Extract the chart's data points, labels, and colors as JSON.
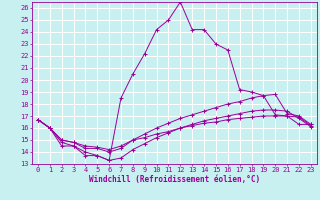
{
  "bg_color": "#c8f0f0",
  "grid_color": "#aadddd",
  "line_color": "#990099",
  "xlim": [
    -0.5,
    23.5
  ],
  "ylim": [
    13,
    26.5
  ],
  "xticks": [
    0,
    1,
    2,
    3,
    4,
    5,
    6,
    7,
    8,
    9,
    10,
    11,
    12,
    13,
    14,
    15,
    16,
    17,
    18,
    19,
    20,
    21,
    22,
    23
  ],
  "yticks": [
    13,
    14,
    15,
    16,
    17,
    18,
    19,
    20,
    21,
    22,
    23,
    24,
    25,
    26
  ],
  "line1_x": [
    0,
    1,
    2,
    3,
    4,
    5,
    6,
    7,
    8,
    9,
    10,
    11,
    12,
    13,
    14,
    15,
    16,
    17,
    18,
    19,
    20,
    21,
    22,
    23
  ],
  "line1_y": [
    16.7,
    16.0,
    14.5,
    14.5,
    13.7,
    13.7,
    13.3,
    18.5,
    20.5,
    22.2,
    24.2,
    25.0,
    26.5,
    24.2,
    24.2,
    23.0,
    22.5,
    19.2,
    19.0,
    18.7,
    17.1,
    17.0,
    16.3,
    16.3
  ],
  "line2_x": [
    0,
    1,
    2,
    3,
    4,
    5,
    6,
    7,
    8,
    9,
    10,
    11,
    12,
    13,
    14,
    15,
    16,
    17,
    18,
    19,
    20,
    21,
    22,
    23
  ],
  "line2_y": [
    16.7,
    16.0,
    15.0,
    14.8,
    14.3,
    14.3,
    14.0,
    14.3,
    15.0,
    15.5,
    16.0,
    16.4,
    16.8,
    17.1,
    17.4,
    17.7,
    18.0,
    18.2,
    18.5,
    18.7,
    18.8,
    17.2,
    17.0,
    16.3
  ],
  "line3_x": [
    0,
    1,
    2,
    3,
    4,
    5,
    6,
    7,
    8,
    9,
    10,
    11,
    12,
    13,
    14,
    15,
    16,
    17,
    18,
    19,
    20,
    21,
    22,
    23
  ],
  "line3_y": [
    16.7,
    16.0,
    15.0,
    14.8,
    14.5,
    14.4,
    14.2,
    14.5,
    15.0,
    15.2,
    15.5,
    15.7,
    16.0,
    16.2,
    16.4,
    16.5,
    16.7,
    16.8,
    16.9,
    17.0,
    17.0,
    17.0,
    16.9,
    16.2
  ],
  "line4_x": [
    0,
    1,
    2,
    3,
    4,
    5,
    6,
    7,
    8,
    9,
    10,
    11,
    12,
    13,
    14,
    15,
    16,
    17,
    18,
    19,
    20,
    21,
    22,
    23
  ],
  "line4_y": [
    16.7,
    16.0,
    14.8,
    14.5,
    14.0,
    13.7,
    13.3,
    13.5,
    14.2,
    14.7,
    15.2,
    15.6,
    16.0,
    16.3,
    16.6,
    16.8,
    17.0,
    17.2,
    17.4,
    17.5,
    17.5,
    17.4,
    16.8,
    16.1
  ],
  "xlabel": "Windchill (Refroidissement éolien,°C)",
  "tick_fontsize": 5.0,
  "xlabel_fontsize": 5.5,
  "linewidth": 0.7,
  "markersize": 3,
  "markeredgewidth": 0.7
}
